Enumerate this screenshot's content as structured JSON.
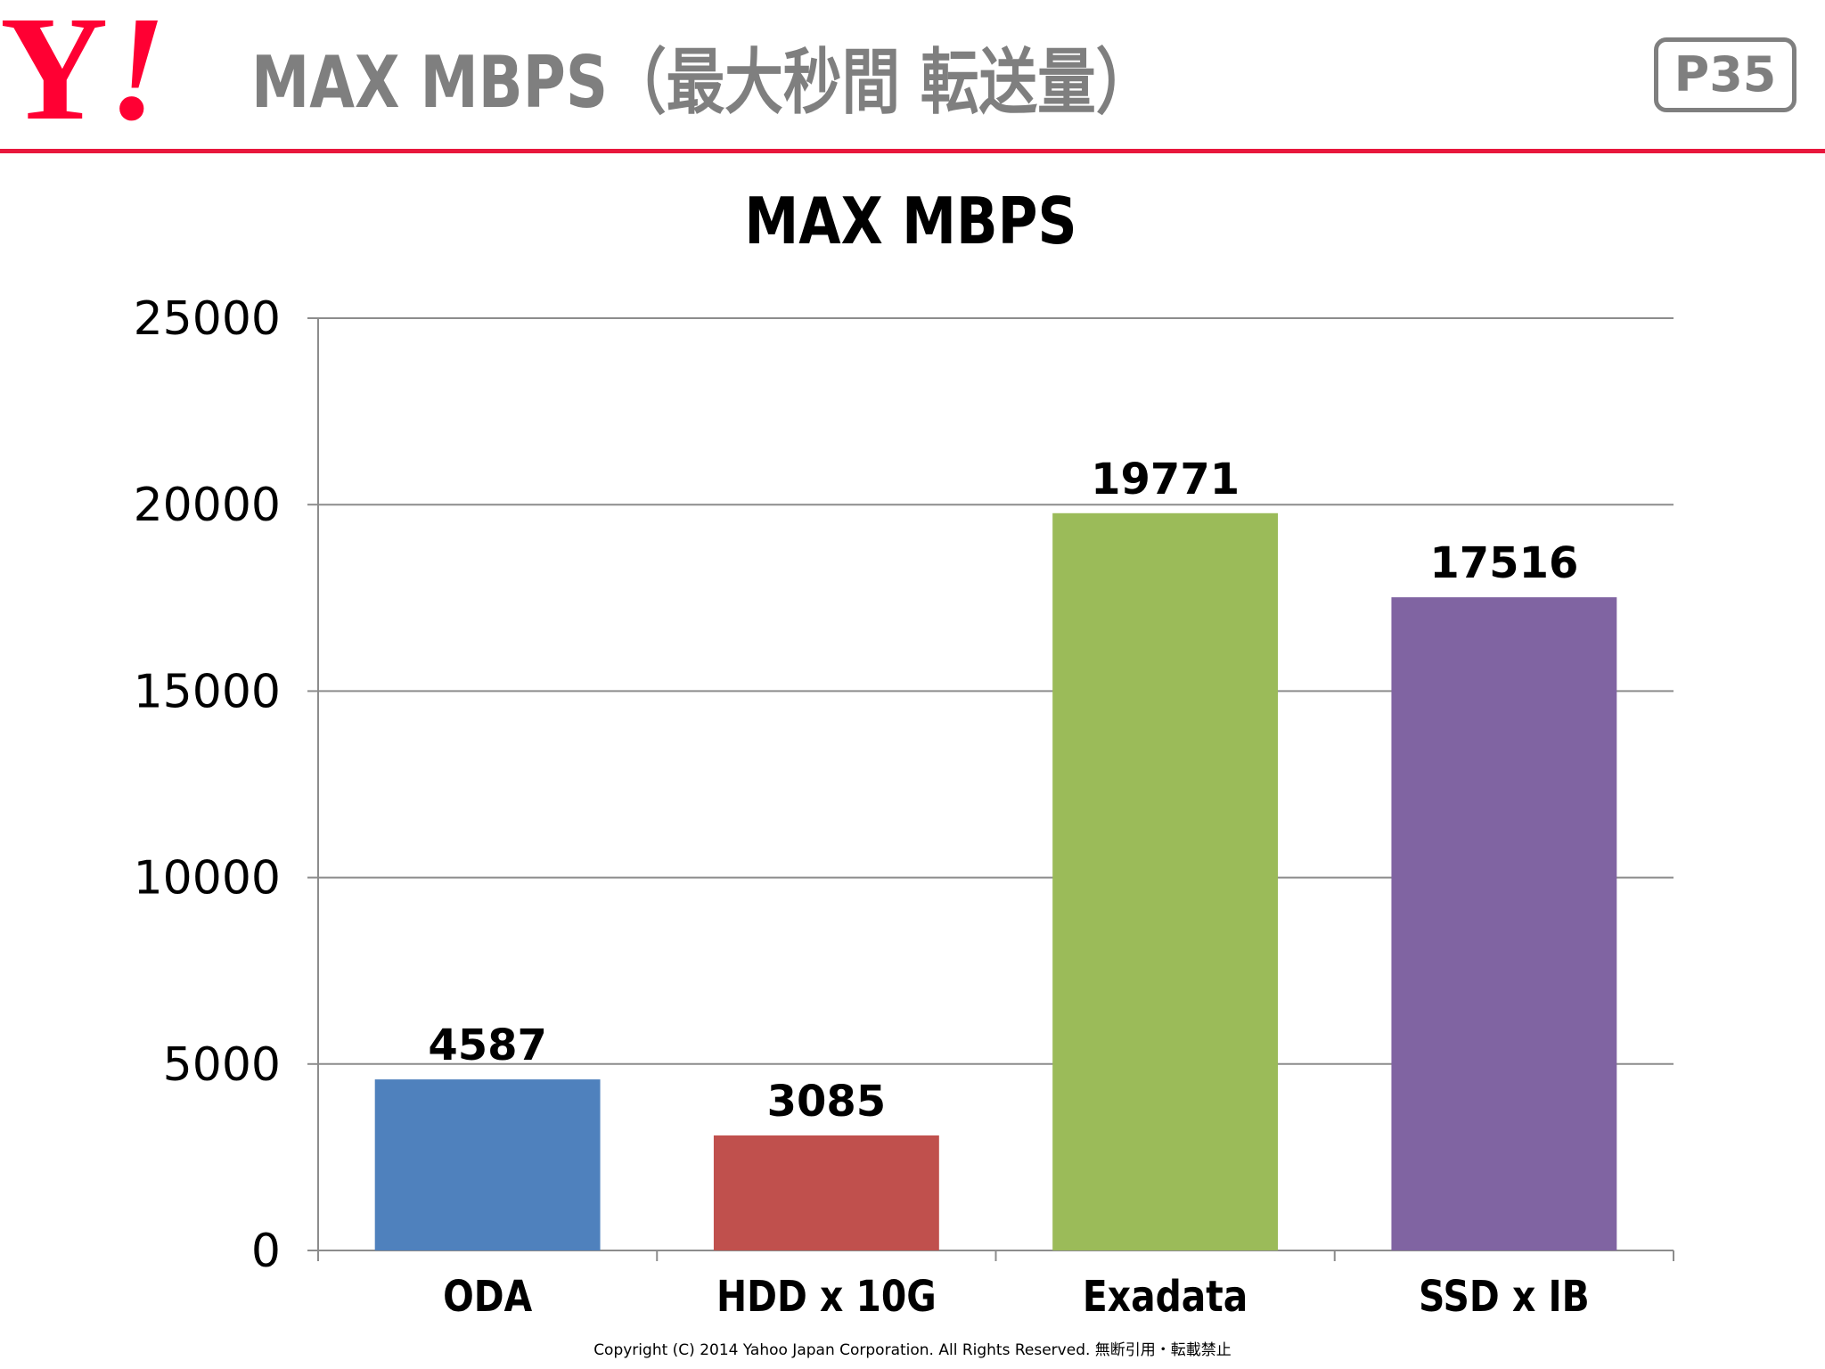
{
  "header": {
    "logo_letter": "Y",
    "logo_bang": "!",
    "title": "MAX MBPS（最大秒間 転送量）",
    "page_number": "P35"
  },
  "colors": {
    "brand_red": "#e8173c",
    "title_gray": "#7f7f7f"
  },
  "chart_data": {
    "type": "bar",
    "title": "MAX MBPS",
    "categories": [
      "ODA",
      "HDD x 10G",
      "Exadata",
      "SSD x IB"
    ],
    "values": [
      4587,
      3085,
      19771,
      17516
    ],
    "data_labels": [
      "4587",
      "3085",
      "19771",
      "17516"
    ],
    "bar_colors": [
      "#4f81bd",
      "#c0504d",
      "#9bbb59",
      "#8064a2"
    ],
    "ylim": [
      0,
      25000
    ],
    "yticks": [
      0,
      5000,
      10000,
      15000,
      20000,
      25000
    ],
    "ytick_labels": [
      "0",
      "5000",
      "10000",
      "15000",
      "20000",
      "25000"
    ],
    "xlabel": "",
    "ylabel": "",
    "grid": true,
    "legend": "none"
  },
  "footer": {
    "copyright": "Copyright (C) 2014 Yahoo Japan Corporation. All Rights Reserved. 無断引用・転載禁止"
  }
}
